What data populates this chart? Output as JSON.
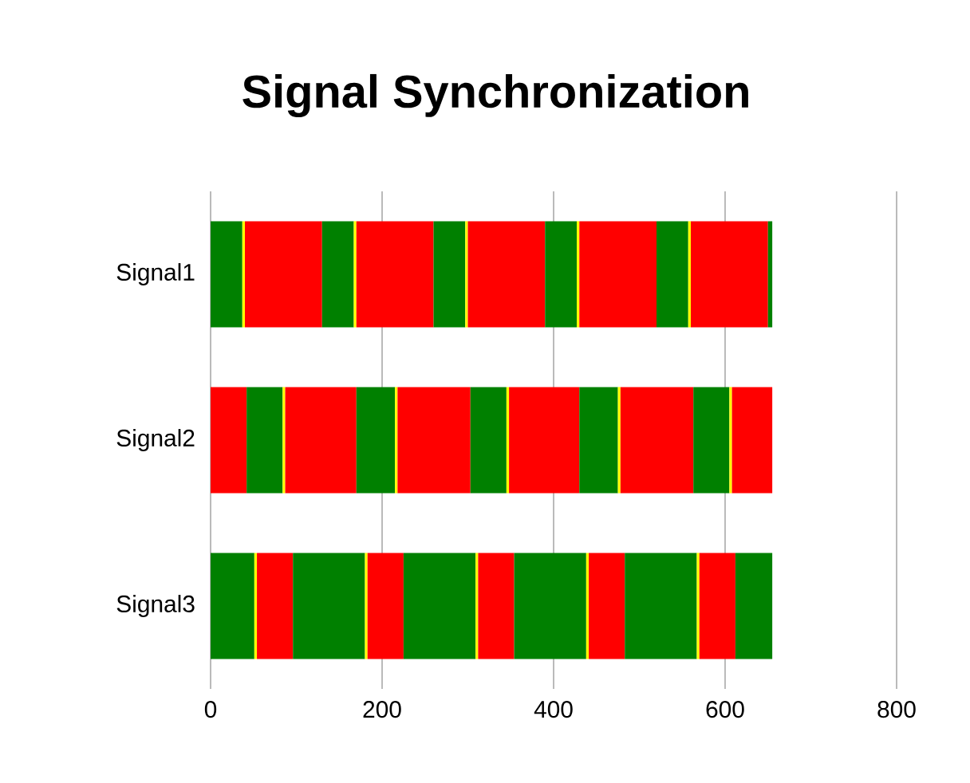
{
  "chart_data": {
    "type": "bar",
    "orientation": "horizontal",
    "stacked": true,
    "title": "Signal Synchronization",
    "categories": [
      "Signal1",
      "Signal2",
      "Signal3"
    ],
    "series": [
      {
        "colors": [
          "#008000",
          "#ff0000",
          "#008000"
        ],
        "values": [
          37,
          42,
          51
        ]
      },
      {
        "colors": [
          "#ffff00",
          "#008000",
          "#ffff00"
        ],
        "values": [
          3,
          42,
          3
        ]
      },
      {
        "colors": [
          "#ff0000",
          "#ffff00",
          "#ff0000"
        ],
        "values": [
          90,
          3,
          42
        ]
      },
      {
        "colors": [
          "#008000",
          "#ff0000",
          "#008000"
        ],
        "values": [
          37,
          83,
          84
        ]
      },
      {
        "colors": [
          "#ffff00",
          "#008000",
          "#ffff00"
        ],
        "values": [
          3,
          45,
          3
        ]
      },
      {
        "colors": [
          "#ff0000",
          "#ffff00",
          "#ff0000"
        ],
        "values": [
          90,
          3,
          42
        ]
      },
      {
        "colors": [
          "#008000",
          "#ff0000",
          "#008000"
        ],
        "values": [
          37,
          85,
          84
        ]
      },
      {
        "colors": [
          "#ffff00",
          "#008000",
          "#ffff00"
        ],
        "values": [
          3,
          42,
          3
        ]
      },
      {
        "colors": [
          "#ff0000",
          "#ffff00",
          "#ff0000"
        ],
        "values": [
          90,
          3,
          42
        ]
      },
      {
        "colors": [
          "#008000",
          "#ff0000",
          "#008000"
        ],
        "values": [
          37,
          82,
          84
        ]
      },
      {
        "colors": [
          "#ffff00",
          "#008000",
          "#ffff00"
        ],
        "values": [
          3,
          45,
          3
        ]
      },
      {
        "colors": [
          "#ff0000",
          "#ffff00",
          "#ff0000"
        ],
        "values": [
          90,
          3,
          42
        ]
      },
      {
        "colors": [
          "#008000",
          "#ff0000",
          "#008000"
        ],
        "values": [
          37,
          85,
          84
        ]
      },
      {
        "colors": [
          "#ffff00",
          "#008000",
          "#ffff00"
        ],
        "values": [
          3,
          42,
          3
        ]
      },
      {
        "colors": [
          "#ff0000",
          "#ffff00",
          "#ff0000"
        ],
        "values": [
          90,
          3,
          42
        ]
      },
      {
        "colors": [
          "#008000",
          "#ff0000",
          "#008000"
        ],
        "values": [
          5,
          47,
          43
        ]
      }
    ],
    "xlim": [
      0,
      800
    ],
    "xticks": [
      0,
      200,
      400,
      600,
      800
    ],
    "grid": "x"
  }
}
